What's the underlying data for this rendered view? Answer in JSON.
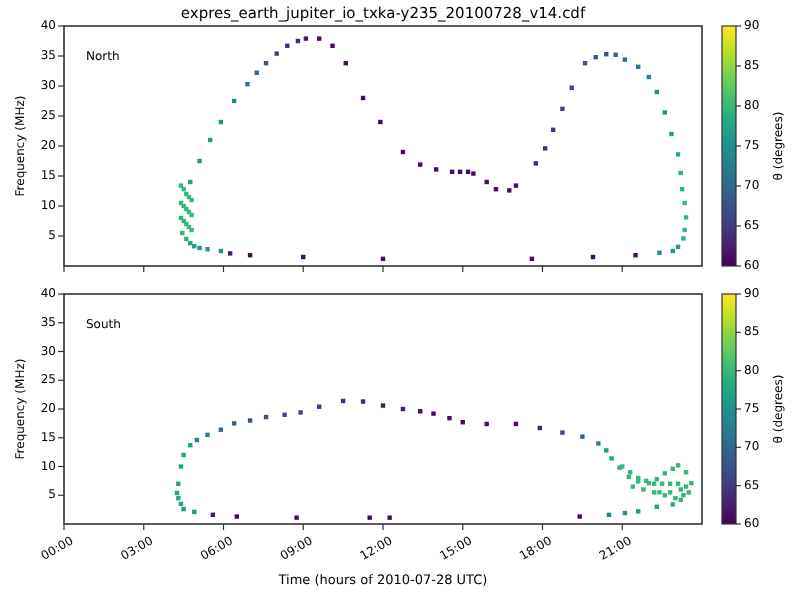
{
  "chart_data": [
    {
      "type": "scatter",
      "title": "expres_earth_jupiter_io_txka-y235_20100728_v14.cdf",
      "ylabel": "Frequency (MHz)",
      "clabel": "θ (degrees)",
      "annotations": [
        "North"
      ],
      "marker": "square",
      "tick_labels": "y",
      "xlim": [
        0,
        24
      ],
      "xticks": [
        {
          "value": 0,
          "label": null
        },
        {
          "value": 3,
          "label": null
        },
        {
          "value": 6,
          "label": null
        },
        {
          "value": 9,
          "label": null
        },
        {
          "value": 12,
          "label": null
        },
        {
          "value": 15,
          "label": null
        },
        {
          "value": 18,
          "label": null
        },
        {
          "value": 21,
          "label": null
        }
      ],
      "ylim": [
        0,
        40
      ],
      "yticks": [
        5,
        10,
        15,
        20,
        25,
        30,
        35,
        40
      ],
      "clim": [
        60,
        90
      ],
      "cticks": [
        60,
        65,
        70,
        75,
        80,
        85,
        90
      ],
      "series": [
        {
          "x": [
            4.4,
            4.5,
            4.6,
            4.7,
            4.8,
            4.4,
            4.5,
            4.6,
            4.7,
            4.8,
            4.4,
            4.5,
            4.6,
            4.7,
            4.8,
            4.45,
            4.6,
            4.75,
            4.9,
            5.1,
            5.4,
            5.9,
            4.75,
            5.1,
            5.5,
            5.9,
            6.4,
            6.9,
            7.25,
            7.6,
            8.0,
            8.4,
            8.8,
            9.1,
            9.6,
            10.1,
            10.6,
            11.25,
            11.9,
            12.75,
            13.4,
            14,
            14.6,
            14.9,
            15.2,
            15.4,
            15.9,
            16.25,
            16.75,
            17,
            17.75,
            18.1,
            18.4,
            18.75,
            19.1,
            19.6,
            20.0,
            20.4,
            20.75,
            21.1,
            21.6,
            22,
            22.3,
            22.6,
            22.85,
            23.1,
            23.2,
            23.25,
            23.35,
            23.4,
            23.35,
            23.3,
            23.1,
            22.9,
            22.4,
            6.25,
            7,
            9,
            12,
            17.6,
            19.9,
            21.5
          ],
          "values": [
            13.4,
            12.8,
            12.0,
            11.5,
            11.0,
            10.5,
            10.0,
            9.5,
            9.0,
            8.5,
            8.0,
            7.5,
            7.0,
            6.5,
            6.0,
            5.5,
            4.5,
            3.8,
            3.3,
            3.0,
            2.8,
            2.5,
            14,
            17.5,
            21,
            24,
            27.5,
            30.3,
            32.2,
            33.8,
            35.4,
            36.7,
            37.5,
            37.9,
            37.9,
            36.7,
            33.8,
            28,
            24,
            19,
            16.9,
            16.1,
            15.7,
            15.7,
            15.7,
            15.4,
            14,
            12.8,
            12.6,
            13.4,
            17.1,
            19.6,
            22.7,
            26.2,
            29.7,
            33.8,
            34.8,
            35.3,
            35.2,
            34.4,
            33.2,
            31.5,
            29,
            25.6,
            22,
            18.6,
            15.5,
            12.8,
            10.5,
            8.1,
            6,
            4.6,
            3.2,
            2.5,
            2.2,
            2.1,
            1.8,
            1.5,
            1.2,
            1.2,
            1.5,
            1.8
          ],
          "cvalues": [
            80,
            80,
            80,
            80,
            80,
            80,
            80,
            80,
            80,
            80,
            80,
            80,
            80,
            80,
            80,
            80,
            79,
            78,
            77,
            76,
            76,
            75,
            77,
            76,
            76,
            75,
            74,
            72,
            70,
            68,
            66,
            64,
            63,
            62,
            61,
            61,
            61,
            61,
            61,
            61,
            61,
            61,
            61,
            61,
            61,
            61,
            61,
            61,
            61,
            61,
            63,
            64,
            65,
            66,
            67,
            68,
            68,
            68,
            69,
            70,
            72,
            74,
            75,
            76,
            77,
            78,
            79,
            80,
            80,
            80,
            80,
            79,
            77,
            76,
            75,
            62,
            61,
            61,
            61,
            61,
            61,
            61
          ]
        }
      ]
    },
    {
      "type": "scatter",
      "xlabel": "Time (hours of 2010-07-28 UTC)",
      "ylabel": "Frequency (MHz)",
      "clabel": "θ (degrees)",
      "annotations": [
        "South"
      ],
      "marker": "square",
      "xlim": [
        0,
        24
      ],
      "xticks": [
        {
          "value": 0,
          "label": "00:00"
        },
        {
          "value": 3,
          "label": "03:00"
        },
        {
          "value": 6,
          "label": "06:00"
        },
        {
          "value": 9,
          "label": "09:00"
        },
        {
          "value": 12,
          "label": "12:00"
        },
        {
          "value": 15,
          "label": "15:00"
        },
        {
          "value": 18,
          "label": "18:00"
        },
        {
          "value": 21,
          "label": "21:00"
        }
      ],
      "ylim": [
        0,
        40
      ],
      "yticks": [
        5,
        10,
        15,
        20,
        25,
        30,
        35,
        40
      ],
      "clim": [
        60,
        90
      ],
      "cticks": [
        60,
        65,
        70,
        75,
        80,
        85,
        90
      ],
      "series": [
        {
          "x": [
            4.9,
            4.5,
            4.4,
            4.3,
            4.25,
            4.3,
            4.4,
            4.5,
            4.75,
            5.0,
            5.4,
            5.9,
            6.4,
            7.0,
            7.6,
            8.3,
            8.9,
            9.6,
            10.5,
            11.25,
            12,
            12.75,
            13.4,
            13.9,
            14.5,
            15,
            15.9,
            17,
            17.9,
            18.75,
            19.5,
            20.1,
            20.4,
            20.6,
            20.9,
            21.25,
            21.6,
            22,
            22.3,
            22.6,
            22.9,
            23.1,
            23.4,
            23.6,
            23.5,
            23.2,
            22.9,
            22.3,
            21.6,
            21.1,
            20.5,
            21.0,
            21.3,
            21.6,
            21.9,
            22.2,
            22.5,
            22.8,
            23.1,
            23.4,
            21.4,
            21.8,
            22.2,
            22.6,
            23.0,
            23.3,
            22.4,
            22.8,
            23.2,
            5.6,
            6.5,
            8.75,
            11.5,
            12.25,
            19.4
          ],
          "values": [
            2.1,
            2.6,
            3.5,
            4.5,
            5.4,
            7,
            10,
            12,
            13.7,
            14.6,
            15.5,
            16.4,
            17.5,
            18.0,
            18.6,
            19.0,
            19.4,
            20.4,
            21.4,
            21.3,
            20.6,
            20,
            19.6,
            19.2,
            18.4,
            17.7,
            17.4,
            17.4,
            16.7,
            15.9,
            15.2,
            14,
            12.8,
            11.4,
            9.8,
            8.2,
            7.4,
            7.1,
            7.8,
            8.8,
            9.6,
            10.2,
            9.0,
            7.1,
            5.5,
            4.2,
            3.4,
            3.0,
            2.2,
            1.9,
            1.6,
            10.0,
            9.0,
            8.0,
            7.5,
            7.0,
            7.0,
            7.0,
            7.0,
            6.5,
            6.5,
            6.0,
            5.5,
            5.0,
            4.5,
            5.0,
            5.5,
            5.5,
            6.0,
            1.6,
            1.3,
            1.1,
            1.1,
            1.1,
            1.3
          ],
          "cvalues": [
            76,
            76,
            77,
            78,
            78,
            78,
            78,
            78,
            77,
            74,
            72,
            70,
            69,
            68,
            67,
            66,
            66,
            65,
            64,
            63,
            62,
            62,
            61,
            61,
            61,
            61,
            61,
            61,
            63,
            66,
            70,
            74,
            76,
            78,
            79,
            80,
            80,
            80,
            80,
            80,
            80,
            80,
            80,
            80,
            80,
            80,
            79,
            77,
            76,
            75,
            74,
            80,
            80,
            80,
            80,
            80,
            80,
            80,
            80,
            80,
            80,
            80,
            80,
            80,
            80,
            80,
            80,
            80,
            80,
            62,
            61,
            61,
            61,
            61,
            61
          ]
        }
      ]
    }
  ]
}
